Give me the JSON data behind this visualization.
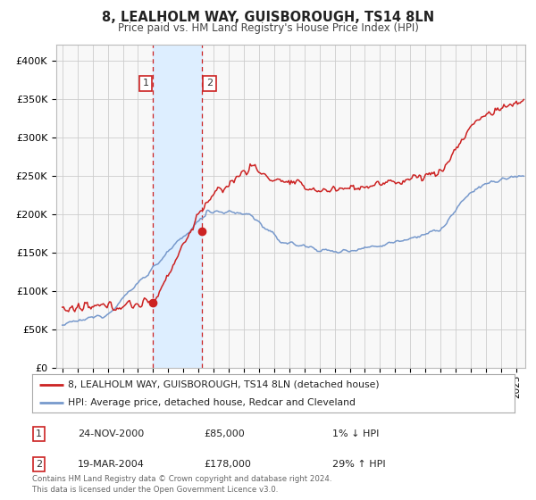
{
  "title": "8, LEALHOLM WAY, GUISBOROUGH, TS14 8LN",
  "subtitle": "Price paid vs. HM Land Registry's House Price Index (HPI)",
  "legend_line1": "8, LEALHOLM WAY, GUISBOROUGH, TS14 8LN (detached house)",
  "legend_line2": "HPI: Average price, detached house, Redcar and Cleveland",
  "table_rows": [
    [
      "1",
      "24-NOV-2000",
      "£85,000",
      "1% ↓ HPI"
    ],
    [
      "2",
      "19-MAR-2004",
      "£178,000",
      "29% ↑ HPI"
    ]
  ],
  "footnote": "Contains HM Land Registry data © Crown copyright and database right 2024.\nThis data is licensed under the Open Government Licence v3.0.",
  "sale1_date": 2001.0,
  "sale1_price": 85000,
  "sale2_date": 2004.22,
  "sale2_price": 178000,
  "hpi_color": "#7799cc",
  "price_color": "#cc2222",
  "shading_color": "#ddeeff",
  "vline_color": "#cc2222",
  "grid_color": "#cccccc",
  "background_color": "#ffffff",
  "plot_bg_color": "#f8f8f8"
}
